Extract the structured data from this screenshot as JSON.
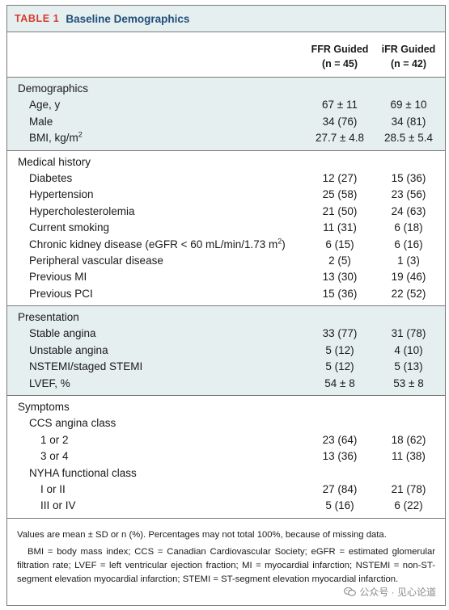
{
  "table": {
    "label": "TABLE 1",
    "title": "Baseline Demographics",
    "columns": [
      {
        "name": "FFR Guided",
        "n": "(n = 45)"
      },
      {
        "name": "iFR Guided",
        "n": "(n = 42)"
      }
    ],
    "sections": {
      "demographics": {
        "heading": "Demographics",
        "rows": [
          {
            "label": "Age, y",
            "ffr": "67 ± 11",
            "ifr": "69 ± 10"
          },
          {
            "label": "Male",
            "ffr": "34 (76)",
            "ifr": "34 (81)"
          },
          {
            "label": "BMI, kg/m",
            "sup": "2",
            "ffr": "27.7 ± 4.8",
            "ifr": "28.5 ± 5.4"
          }
        ]
      },
      "medical_history": {
        "heading": "Medical history",
        "rows": [
          {
            "label": "Diabetes",
            "ffr": "12 (27)",
            "ifr": "15 (36)"
          },
          {
            "label": "Hypertension",
            "ffr": "25 (58)",
            "ifr": "23 (56)"
          },
          {
            "label": "Hypercholesterolemia",
            "ffr": "21 (50)",
            "ifr": "24 (63)"
          },
          {
            "label": "Current smoking",
            "ffr": "11 (31)",
            "ifr": "6 (18)"
          },
          {
            "label": "Chronic kidney disease (eGFR < 60 mL/min/1.73 m",
            "sup": "2",
            "tail": ")",
            "ffr": "6 (15)",
            "ifr": "6 (16)"
          },
          {
            "label": "Peripheral vascular disease",
            "ffr": "2 (5)",
            "ifr": "1 (3)"
          },
          {
            "label": "Previous MI",
            "ffr": "13 (30)",
            "ifr": "19 (46)"
          },
          {
            "label": "Previous PCI",
            "ffr": "15 (36)",
            "ifr": "22 (52)"
          }
        ]
      },
      "presentation": {
        "heading": "Presentation",
        "rows": [
          {
            "label": "Stable angina",
            "ffr": "33 (77)",
            "ifr": "31 (78)"
          },
          {
            "label": "Unstable angina",
            "ffr": "5 (12)",
            "ifr": "4 (10)"
          },
          {
            "label": "NSTEMI/staged STEMI",
            "ffr": "5 (12)",
            "ifr": "5 (13)"
          },
          {
            "label": "LVEF, %",
            "ffr": "54 ± 8",
            "ifr": "53 ± 8"
          }
        ]
      },
      "symptoms": {
        "heading": "Symptoms",
        "ccs": {
          "heading": "CCS angina class",
          "rows": [
            {
              "label": "1 or 2",
              "ffr": "23 (64)",
              "ifr": "18 (62)"
            },
            {
              "label": "3 or 4",
              "ffr": "13 (36)",
              "ifr": "11 (38)"
            }
          ]
        },
        "nyha": {
          "heading": "NYHA functional class",
          "rows": [
            {
              "label": "I or II",
              "ffr": "27 (84)",
              "ifr": "21 (78)"
            },
            {
              "label": "III or IV",
              "ffr": "5 (16)",
              "ifr": "6 (22)"
            }
          ]
        }
      }
    },
    "footnotes": {
      "note1": "Values are mean ± SD or n (%). Percentages may not total 100%, because of missing data.",
      "note2": "BMI = body mass index; CCS = Canadian Cardiovascular Society; eGFR = estimated glomerular filtration rate; LVEF = left ventricular ejection fraction; MI = myocardial infarction; NSTEMI = non-ST-segment elevation myocardial infarction; STEMI = ST-segment elevation myocardial infarction."
    }
  },
  "watermark": {
    "text": "公众号 · 见心论道",
    "icon": "wechat-icon"
  },
  "colors": {
    "label_red": "#d83a2c",
    "title_blue": "#1f4e79",
    "shade": "#e6efef"
  }
}
